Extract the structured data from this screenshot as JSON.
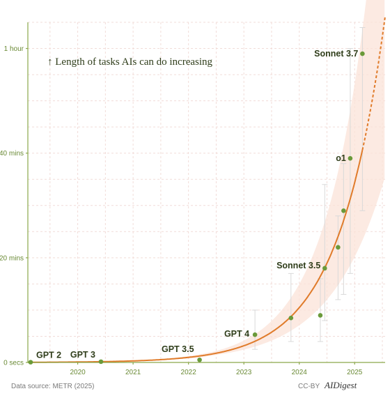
{
  "chart_data": {
    "type": "scatter",
    "annotation": "↑  Length of tasks AIs can do increasing",
    "y_ticks": [
      {
        "value": 0,
        "label": "0 secs"
      },
      {
        "value": 20,
        "label": "20 mins"
      },
      {
        "value": 40,
        "label": "40 mins"
      },
      {
        "value": 60,
        "label": "1 hour"
      }
    ],
    "x_ticks": [
      2020,
      2021,
      2022,
      2023,
      2024,
      2025
    ],
    "x_tick_labels": [
      "2020",
      "2021",
      "2022",
      "2023",
      "2024",
      "2025"
    ],
    "xlim": [
      2019.1,
      2025.55
    ],
    "ylim": [
      0,
      65
    ],
    "grid": true,
    "points": [
      {
        "x": 2019.15,
        "y": 0.05,
        "label": "GPT 2"
      },
      {
        "x": 2020.42,
        "y": 0.15,
        "label": "GPT 3"
      },
      {
        "x": 2022.2,
        "y": 0.5,
        "label": "GPT 3.5"
      },
      {
        "x": 2023.2,
        "y": 5.3,
        "label": "GPT 4",
        "err": [
          2.5,
          10
        ]
      },
      {
        "x": 2023.85,
        "y": 8.5,
        "err": [
          4,
          17
        ]
      },
      {
        "x": 2024.38,
        "y": 9.0,
        "err": [
          4,
          16
        ]
      },
      {
        "x": 2024.46,
        "y": 18.0,
        "label": "Sonnet 3.5",
        "err": [
          8,
          34
        ]
      },
      {
        "x": 2024.7,
        "y": 22.0,
        "err": [
          12,
          28
        ]
      },
      {
        "x": 2024.8,
        "y": 29.0,
        "err": [
          13,
          38
        ]
      },
      {
        "x": 2024.92,
        "y": 39.0,
        "label": "o1",
        "err": [
          17,
          60
        ]
      },
      {
        "x": 2025.14,
        "y": 59.0,
        "label": "Sonnet 3.7",
        "err": [
          29,
          64
        ]
      }
    ],
    "trend": {
      "doubling_months": 7,
      "anchor_x": 2025.14,
      "anchor_y": 40.6,
      "solid_until": 2025.14
    },
    "source": "Data source: METR (2025)",
    "license": "CC-BY",
    "brand": "AIDigest"
  },
  "colors": {
    "axis": "#8aa84a",
    "point": "#6a9a3a",
    "trend": "#e07b2a",
    "band": "#fbe3d8",
    "grid": "#f1dcd8",
    "errorbar": "#d9d9d9"
  }
}
